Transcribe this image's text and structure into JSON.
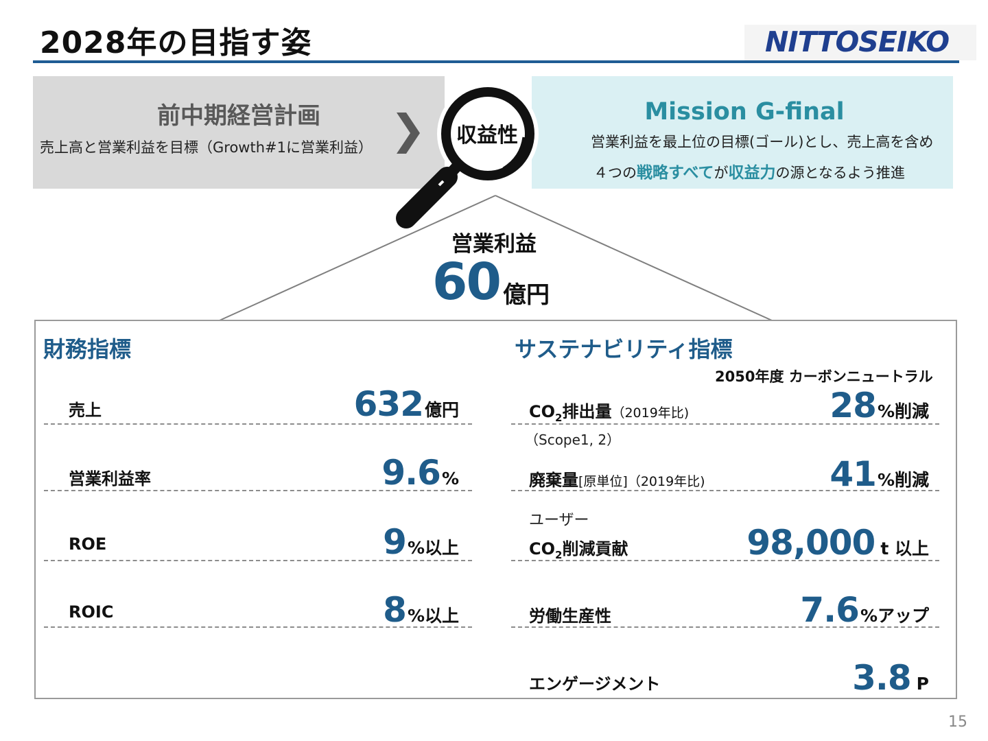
{
  "header": {
    "title": "2028年の目指す姿",
    "logo_text": "NITTOSEIKO"
  },
  "previous_plan": {
    "heading": "前中期経営計画",
    "description": "売上高と営業利益を目標（Growth#1に営業利益）"
  },
  "focus": {
    "label": "収益性",
    "icon": "magnifying-glass-icon"
  },
  "mission": {
    "heading": "Mission G-final",
    "line1": "営業利益を最上位の目標(ゴール)とし、売上高を含め",
    "line2_a": "４つの",
    "line2_b": "戦略すべて",
    "line2_c": "が",
    "line2_d": "収益力",
    "line2_e": "の源となるよう推進"
  },
  "profit": {
    "label": "営業利益",
    "value": "60",
    "unit": "億円"
  },
  "financial": {
    "title": "財務指標",
    "items": [
      {
        "label": "売上",
        "value": "632",
        "unit": "億円"
      },
      {
        "label": "営業利益率",
        "value": "9.6",
        "unit": "%"
      },
      {
        "label": "ROE",
        "value": "9",
        "unit": "%以上"
      },
      {
        "label": "ROIC",
        "value": "8",
        "unit": "%以上"
      }
    ]
  },
  "sustainability": {
    "title": "サステナビリティ指標",
    "carbon_note": "2050年度 カーボンニュートラル",
    "items": [
      {
        "label_a": "CO",
        "label_sub": "2",
        "label_b": "排出量",
        "label_small": "（2019年比)",
        "value": "28",
        "unit": "%削減",
        "note": "（Scope1, 2）"
      },
      {
        "label_a": "廃棄量",
        "label_small": "[原単位]（2019年比)",
        "value": "41",
        "unit": "%削減"
      },
      {
        "prefix": "ユーザー",
        "label_a": "CO",
        "label_sub": "2",
        "label_b": "削減貢献",
        "value": "98,000",
        "unit": "t 以上"
      },
      {
        "label_a": "労働生産性",
        "value": "7.6",
        "unit": "%アップ"
      },
      {
        "label_a": "エンゲージメント",
        "value": "3.8",
        "unit": "P"
      }
    ]
  },
  "page_number": "15",
  "colors": {
    "accent_blue": "#1f5c8a",
    "teal": "#2a8ea1",
    "rule_blue": "#1f5c94",
    "grey_box": "#d9d9d9",
    "teal_box": "#daf0f3"
  }
}
